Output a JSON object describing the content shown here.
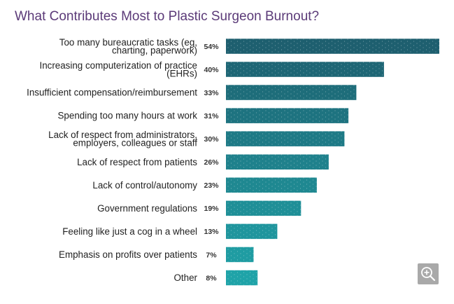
{
  "title": "What Contributes Most to Plastic Surgeon Burnout?",
  "colors": {
    "title": "#5b3a78",
    "bar_top": "#1e5f6f",
    "bar_bottom": "#1fa3a8",
    "zoom_button": "#a9a9a9"
  },
  "icons": {
    "zoom": "zoom-in-icon"
  },
  "chart_data": {
    "type": "bar",
    "orientation": "horizontal",
    "title": "What Contributes Most to Plastic Surgeon Burnout?",
    "unit": "%",
    "xlim": [
      0,
      54
    ],
    "categories": [
      [
        "Too many bureaucratic tasks (eg,",
        "charting, paperwork)"
      ],
      [
        "Increasing computerization of practice",
        "(EHRs)"
      ],
      [
        "Insufficient compensation/reimbursement"
      ],
      [
        "Spending too many hours at work"
      ],
      [
        "Lack of respect from administrators,",
        "employers, colleagues or staff"
      ],
      [
        "Lack of respect from patients"
      ],
      [
        "Lack of control/autonomy"
      ],
      [
        "Government regulations"
      ],
      [
        "Feeling like just a cog in a wheel"
      ],
      [
        "Emphasis on profits over patients"
      ],
      [
        "Other"
      ]
    ],
    "values": [
      54,
      40,
      33,
      31,
      30,
      26,
      23,
      19,
      13,
      7,
      8
    ],
    "value_labels": [
      "54%",
      "40%",
      "33%",
      "31%",
      "30%",
      "26%",
      "23%",
      "19%",
      "13%",
      "7%",
      "8%"
    ],
    "legend": "none",
    "grid": false
  }
}
